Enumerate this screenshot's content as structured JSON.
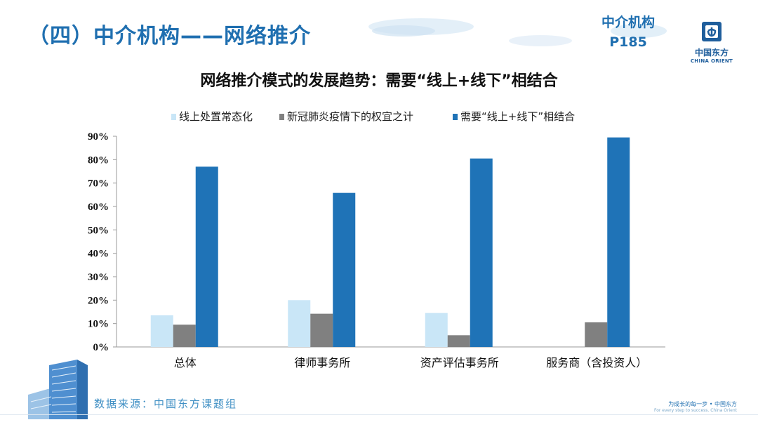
{
  "header": {
    "title": "（四）中介机构——网络推介",
    "ref_line1": "中介机构",
    "ref_line2": "P185"
  },
  "logo": {
    "name": "中国东方",
    "en": "CHINA ORIENT",
    "icon": "china-orient-logo-icon"
  },
  "chart_data": {
    "type": "bar",
    "title": "网络推介模式的发展趋势：需要“线上+线下”相结合",
    "categories": [
      "总体",
      "律师事务所",
      "资产评估事务所",
      "服务商（含投资人）"
    ],
    "series": [
      {
        "name": "线上处置常态化",
        "color": "#c9e6f7",
        "values": [
          13.5,
          20,
          14.5,
          0
        ]
      },
      {
        "name": "新冠肺炎疫情下的权宜之计",
        "color": "#808080",
        "values": [
          9.5,
          14.2,
          5,
          10.5
        ]
      },
      {
        "name": "需要“线上+线下”相结合",
        "color": "#1f73b7",
        "values": [
          77,
          65.8,
          80.5,
          89.5
        ]
      }
    ],
    "ylim": [
      0,
      90
    ],
    "yticks": [
      "0%",
      "10%",
      "20%",
      "30%",
      "40%",
      "50%",
      "60%",
      "70%",
      "80%",
      "90%"
    ],
    "xlabel": "",
    "ylabel": "",
    "grid": false,
    "legend_position": "top"
  },
  "footer": {
    "source": "数据来源：中国东方课题组",
    "slogan_cn": "为成长的每一步 • 中国东方",
    "slogan_en": "For every step to success. China Orient"
  }
}
